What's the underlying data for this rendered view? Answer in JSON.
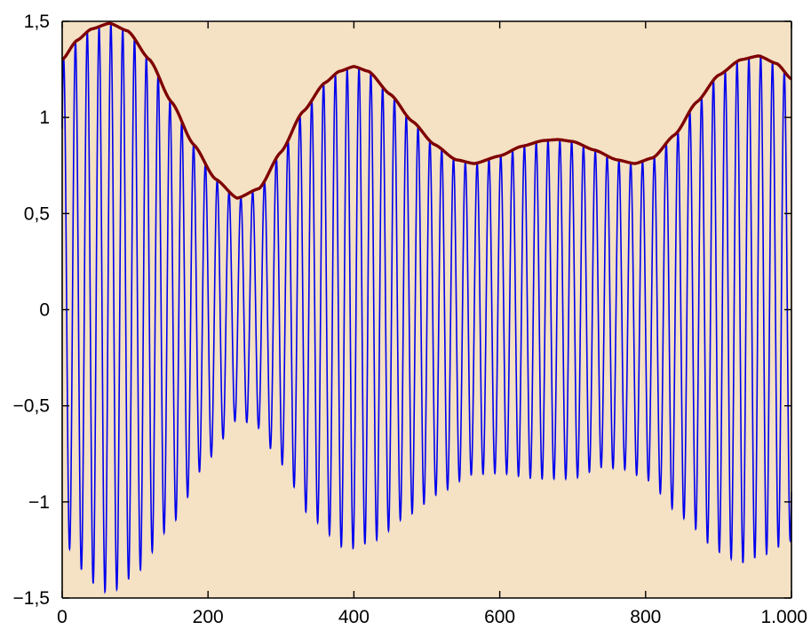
{
  "chart_data": {
    "type": "line",
    "title": "",
    "xlabel": "",
    "ylabel": "",
    "xlim": [
      0,
      1000
    ],
    "ylim": [
      -1.5,
      1.5
    ],
    "grid": false,
    "legend": "none",
    "x_ticks": [
      {
        "value": 0,
        "label": "0"
      },
      {
        "value": 200,
        "label": "200"
      },
      {
        "value": 400,
        "label": "400"
      },
      {
        "value": 600,
        "label": "600"
      },
      {
        "value": 800,
        "label": "800"
      },
      {
        "value": 1000,
        "label": "1.000"
      }
    ],
    "y_ticks": [
      {
        "value": 1.5,
        "label": "1,5"
      },
      {
        "value": 1,
        "label": "1"
      },
      {
        "value": 0.5,
        "label": "0,5"
      },
      {
        "value": 0,
        "label": "0"
      },
      {
        "value": -0.5,
        "label": "−0,5"
      },
      {
        "value": -1,
        "label": "−1"
      },
      {
        "value": -1.5,
        "label": "−1,5"
      }
    ],
    "colors": {
      "plot_background": "#f5e1c3",
      "oscillation": "#0000ee",
      "envelope": "#7f0000",
      "axis": "#000000"
    },
    "series": [
      {
        "id": "oscillation",
        "style": "thin",
        "description_type": "fast oscillation, period ~16, bounded above by envelope and below by lower envelope",
        "period": 16.2,
        "phase_x": 2,
        "upper_envelope_ref": "envelope",
        "lower_envelope": {
          "x": [
            0,
            40,
            65,
            100,
            150,
            200,
            240,
            265,
            300,
            340,
            390,
            430,
            470,
            520,
            560,
            600,
            650,
            700,
            740,
            770,
            800,
            850,
            900,
            930,
            960,
            1000
          ],
          "y": [
            -1.2,
            -1.42,
            -1.48,
            -1.38,
            -1.12,
            -0.78,
            -0.57,
            -0.6,
            -0.8,
            -1.08,
            -1.25,
            -1.2,
            -1.08,
            -0.95,
            -0.86,
            -0.85,
            -0.88,
            -0.88,
            -0.82,
            -0.83,
            -0.88,
            -1.08,
            -1.26,
            -1.32,
            -1.28,
            -1.2
          ]
        }
      },
      {
        "id": "envelope",
        "style": "thick",
        "x": [
          0,
          20,
          40,
          65,
          90,
          120,
          150,
          180,
          210,
          240,
          270,
          300,
          330,
          360,
          380,
          400,
          420,
          450,
          480,
          510,
          540,
          565,
          600,
          630,
          660,
          680,
          700,
          730,
          760,
          785,
          810,
          840,
          870,
          900,
          930,
          955,
          980,
          1000
        ],
        "y": [
          1.3,
          1.4,
          1.46,
          1.49,
          1.45,
          1.3,
          1.08,
          0.86,
          0.68,
          0.58,
          0.63,
          0.82,
          1.03,
          1.18,
          1.24,
          1.265,
          1.24,
          1.12,
          0.98,
          0.86,
          0.78,
          0.76,
          0.8,
          0.85,
          0.88,
          0.885,
          0.875,
          0.83,
          0.78,
          0.76,
          0.79,
          0.91,
          1.08,
          1.22,
          1.3,
          1.32,
          1.28,
          1.2
        ]
      }
    ]
  }
}
